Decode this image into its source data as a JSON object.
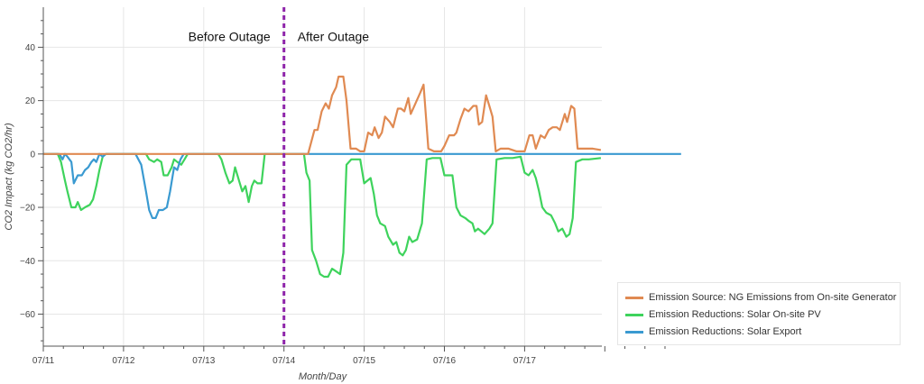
{
  "chart_data": {
    "type": "line",
    "title": "",
    "xlabel": "Month/Day",
    "ylabel": "CO2 Impact (kg CO2/hr)",
    "x_tick_labels": [
      "07/11",
      "07/12",
      "07/13",
      "07/14",
      "07/15",
      "07/16",
      "07/17"
    ],
    "x_range_days": [
      0,
      7.95
    ],
    "ylim": [
      -72,
      55
    ],
    "y_ticks": [
      -60,
      -40,
      -20,
      0,
      20,
      40
    ],
    "grid": true,
    "legend_position": "bottom-right, outside plot",
    "annotations": [
      {
        "text": "Before Outage",
        "x": 2.85,
        "y": 44
      },
      {
        "text": "After Outage",
        "x": 3.15,
        "y": 44
      }
    ],
    "vline": {
      "x": 3.0,
      "style": "dashed",
      "color": "#8e24aa"
    },
    "series": [
      {
        "name": "Emission Source: NG Emissions from On-site Generator",
        "color": "#e08a52",
        "points": [
          [
            0,
            0
          ],
          [
            3.0,
            0
          ],
          [
            3.3,
            0
          ],
          [
            3.38,
            9
          ],
          [
            3.42,
            9
          ],
          [
            3.47,
            16
          ],
          [
            3.52,
            19
          ],
          [
            3.56,
            17
          ],
          [
            3.6,
            22
          ],
          [
            3.65,
            25
          ],
          [
            3.68,
            29
          ],
          [
            3.74,
            29
          ],
          [
            3.78,
            20
          ],
          [
            3.83,
            2
          ],
          [
            3.9,
            2
          ],
          [
            3.95,
            1
          ],
          [
            4.0,
            1
          ],
          [
            4.05,
            8
          ],
          [
            4.1,
            7
          ],
          [
            4.13,
            10
          ],
          [
            4.18,
            6
          ],
          [
            4.22,
            8
          ],
          [
            4.26,
            14
          ],
          [
            4.32,
            12
          ],
          [
            4.36,
            10
          ],
          [
            4.42,
            17
          ],
          [
            4.46,
            17
          ],
          [
            4.5,
            16
          ],
          [
            4.55,
            21
          ],
          [
            4.58,
            15
          ],
          [
            4.64,
            19
          ],
          [
            4.7,
            23
          ],
          [
            4.74,
            26
          ],
          [
            4.8,
            2
          ],
          [
            4.87,
            1
          ],
          [
            4.96,
            1
          ],
          [
            5.0,
            3
          ],
          [
            5.06,
            7
          ],
          [
            5.12,
            7
          ],
          [
            5.15,
            8
          ],
          [
            5.2,
            13
          ],
          [
            5.25,
            17
          ],
          [
            5.3,
            16
          ],
          [
            5.36,
            18
          ],
          [
            5.4,
            18
          ],
          [
            5.43,
            11
          ],
          [
            5.47,
            12
          ],
          [
            5.52,
            22
          ],
          [
            5.56,
            18
          ],
          [
            5.6,
            14
          ],
          [
            5.64,
            1
          ],
          [
            5.7,
            2
          ],
          [
            5.8,
            2
          ],
          [
            5.9,
            1
          ],
          [
            6.0,
            1
          ],
          [
            6.06,
            7
          ],
          [
            6.1,
            7
          ],
          [
            6.14,
            2
          ],
          [
            6.2,
            7
          ],
          [
            6.25,
            6
          ],
          [
            6.3,
            9
          ],
          [
            6.35,
            10
          ],
          [
            6.4,
            10
          ],
          [
            6.44,
            9
          ],
          [
            6.5,
            15
          ],
          [
            6.53,
            12
          ],
          [
            6.58,
            18
          ],
          [
            6.62,
            17
          ],
          [
            6.66,
            2
          ],
          [
            6.75,
            2
          ],
          [
            6.85,
            2
          ],
          [
            6.95,
            1.5
          ]
        ]
      },
      {
        "name": "Emission Reductions: Solar On-site PV",
        "color": "#3ed35c",
        "points": [
          [
            0,
            0
          ],
          [
            0.18,
            0
          ],
          [
            0.22,
            -3
          ],
          [
            0.27,
            -10
          ],
          [
            0.3,
            -14
          ],
          [
            0.35,
            -20
          ],
          [
            0.4,
            -20
          ],
          [
            0.43,
            -18
          ],
          [
            0.47,
            -21
          ],
          [
            0.52,
            -20
          ],
          [
            0.58,
            -19
          ],
          [
            0.62,
            -17
          ],
          [
            0.66,
            -12
          ],
          [
            0.7,
            -6
          ],
          [
            0.74,
            -1
          ],
          [
            0.78,
            0
          ],
          [
            1.1,
            0
          ],
          [
            1.28,
            0
          ],
          [
            1.32,
            -2
          ],
          [
            1.38,
            -3
          ],
          [
            1.42,
            -2
          ],
          [
            1.47,
            -3
          ],
          [
            1.5,
            -8
          ],
          [
            1.55,
            -8
          ],
          [
            1.6,
            -5
          ],
          [
            1.63,
            -2
          ],
          [
            1.67,
            -3
          ],
          [
            1.72,
            -4
          ],
          [
            1.76,
            -2
          ],
          [
            1.8,
            0
          ],
          [
            2.18,
            0
          ],
          [
            2.22,
            -2
          ],
          [
            2.27,
            -7
          ],
          [
            2.32,
            -11
          ],
          [
            2.36,
            -10
          ],
          [
            2.39,
            -5
          ],
          [
            2.44,
            -10
          ],
          [
            2.48,
            -14
          ],
          [
            2.52,
            -12
          ],
          [
            2.56,
            -18
          ],
          [
            2.6,
            -12
          ],
          [
            2.63,
            -10
          ],
          [
            2.67,
            -11
          ],
          [
            2.72,
            -11
          ],
          [
            2.76,
            0
          ],
          [
            3.0,
            0
          ],
          [
            3.25,
            0
          ],
          [
            3.28,
            -7
          ],
          [
            3.32,
            -10
          ],
          [
            3.35,
            -36
          ],
          [
            3.4,
            -40
          ],
          [
            3.45,
            -45
          ],
          [
            3.5,
            -46
          ],
          [
            3.55,
            -46
          ],
          [
            3.6,
            -43
          ],
          [
            3.65,
            -44
          ],
          [
            3.7,
            -45
          ],
          [
            3.74,
            -37
          ],
          [
            3.78,
            -4
          ],
          [
            3.84,
            -2
          ],
          [
            3.9,
            -2
          ],
          [
            3.95,
            -2
          ],
          [
            4.0,
            -11
          ],
          [
            4.04,
            -10
          ],
          [
            4.08,
            -9
          ],
          [
            4.12,
            -15
          ],
          [
            4.16,
            -23
          ],
          [
            4.2,
            -26
          ],
          [
            4.26,
            -27
          ],
          [
            4.3,
            -31
          ],
          [
            4.36,
            -34
          ],
          [
            4.4,
            -33
          ],
          [
            4.44,
            -37
          ],
          [
            4.48,
            -38
          ],
          [
            4.52,
            -36
          ],
          [
            4.56,
            -31
          ],
          [
            4.6,
            -33
          ],
          [
            4.66,
            -32
          ],
          [
            4.72,
            -26
          ],
          [
            4.78,
            -2
          ],
          [
            4.85,
            -1.5
          ],
          [
            4.9,
            -1.5
          ],
          [
            4.95,
            -1.5
          ],
          [
            5.0,
            -8
          ],
          [
            5.05,
            -8
          ],
          [
            5.1,
            -8
          ],
          [
            5.15,
            -20
          ],
          [
            5.2,
            -23
          ],
          [
            5.26,
            -24
          ],
          [
            5.3,
            -25
          ],
          [
            5.35,
            -26
          ],
          [
            5.38,
            -29
          ],
          [
            5.42,
            -28
          ],
          [
            5.46,
            -29
          ],
          [
            5.5,
            -30
          ],
          [
            5.56,
            -28
          ],
          [
            5.6,
            -26
          ],
          [
            5.65,
            -2
          ],
          [
            5.75,
            -1.5
          ],
          [
            5.85,
            -1.5
          ],
          [
            5.95,
            -1
          ],
          [
            6.0,
            -7
          ],
          [
            6.05,
            -8
          ],
          [
            6.1,
            -6
          ],
          [
            6.14,
            -9
          ],
          [
            6.18,
            -14
          ],
          [
            6.22,
            -20
          ],
          [
            6.27,
            -22
          ],
          [
            6.33,
            -23
          ],
          [
            6.38,
            -26
          ],
          [
            6.42,
            -29
          ],
          [
            6.47,
            -28
          ],
          [
            6.52,
            -31
          ],
          [
            6.56,
            -30
          ],
          [
            6.6,
            -24
          ],
          [
            6.64,
            -3
          ],
          [
            6.72,
            -2
          ],
          [
            6.8,
            -2
          ],
          [
            6.95,
            -1.5
          ]
        ]
      },
      {
        "name": "Emission Reductions: Solar Export",
        "color": "#3a9ad1",
        "points": [
          [
            0,
            0
          ],
          [
            0.2,
            0
          ],
          [
            0.24,
            -2
          ],
          [
            0.27,
            0
          ],
          [
            0.3,
            -1
          ],
          [
            0.35,
            -3
          ],
          [
            0.38,
            -11
          ],
          [
            0.43,
            -8
          ],
          [
            0.48,
            -8
          ],
          [
            0.52,
            -6
          ],
          [
            0.56,
            -5
          ],
          [
            0.6,
            -3
          ],
          [
            0.63,
            -2
          ],
          [
            0.66,
            -3
          ],
          [
            0.7,
            0
          ],
          [
            0.74,
            -1
          ],
          [
            0.78,
            0
          ],
          [
            1.15,
            0
          ],
          [
            1.22,
            -4
          ],
          [
            1.28,
            -14
          ],
          [
            1.32,
            -21
          ],
          [
            1.36,
            -24
          ],
          [
            1.4,
            -24
          ],
          [
            1.44,
            -21
          ],
          [
            1.49,
            -21
          ],
          [
            1.54,
            -20
          ],
          [
            1.58,
            -14
          ],
          [
            1.63,
            -5
          ],
          [
            1.67,
            -6
          ],
          [
            1.71,
            -2
          ],
          [
            1.75,
            0
          ],
          [
            7.95,
            0
          ]
        ]
      }
    ]
  }
}
